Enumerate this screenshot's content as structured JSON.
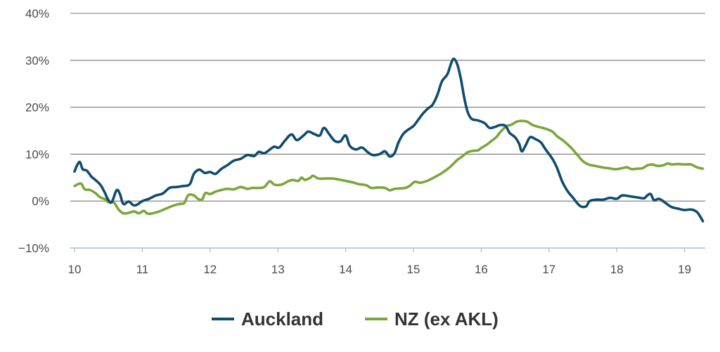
{
  "chart_data": {
    "type": "line",
    "title": "",
    "xlabel": "",
    "ylabel": "",
    "xlim": [
      10,
      19.3
    ],
    "ylim": [
      -10,
      40
    ],
    "x_ticks": [
      {
        "value": 10,
        "label": "10"
      },
      {
        "value": 11,
        "label": "11"
      },
      {
        "value": 12,
        "label": "12"
      },
      {
        "value": 13,
        "label": "13"
      },
      {
        "value": 14,
        "label": "14"
      },
      {
        "value": 15,
        "label": "15"
      },
      {
        "value": 16,
        "label": "16"
      },
      {
        "value": 17,
        "label": "17"
      },
      {
        "value": 18,
        "label": "18"
      },
      {
        "value": 19,
        "label": "19"
      }
    ],
    "y_ticks": [
      {
        "value": -10,
        "label": "−10%"
      },
      {
        "value": 0,
        "label": "0%"
      },
      {
        "value": 10,
        "label": "10%"
      },
      {
        "value": 20,
        "label": "20%"
      },
      {
        "value": 30,
        "label": "30%"
      },
      {
        "value": 40,
        "label": "40%"
      }
    ],
    "grid": true,
    "legend_position": "bottom-center",
    "series": [
      {
        "name": "Auckland",
        "color": "#0f4c6e",
        "points": [
          [
            10.0,
            6.3
          ],
          [
            10.04,
            7.7
          ],
          [
            10.08,
            8.3
          ],
          [
            10.12,
            6.8
          ],
          [
            10.18,
            6.5
          ],
          [
            10.25,
            5.2
          ],
          [
            10.3,
            4.6
          ],
          [
            10.38,
            3.5
          ],
          [
            10.44,
            2.0
          ],
          [
            10.5,
            0.2
          ],
          [
            10.55,
            -0.2
          ],
          [
            10.62,
            2.3
          ],
          [
            10.67,
            1.5
          ],
          [
            10.72,
            -0.6
          ],
          [
            10.8,
            -0.1
          ],
          [
            10.87,
            -0.9
          ],
          [
            10.93,
            -0.7
          ],
          [
            11.0,
            0.0
          ],
          [
            11.1,
            0.5
          ],
          [
            11.2,
            1.2
          ],
          [
            11.3,
            1.6
          ],
          [
            11.4,
            2.8
          ],
          [
            11.5,
            3.0
          ],
          [
            11.6,
            3.2
          ],
          [
            11.7,
            3.6
          ],
          [
            11.76,
            5.8
          ],
          [
            11.84,
            6.7
          ],
          [
            11.92,
            6.0
          ],
          [
            12.0,
            6.2
          ],
          [
            12.08,
            5.8
          ],
          [
            12.16,
            6.8
          ],
          [
            12.25,
            7.6
          ],
          [
            12.35,
            8.6
          ],
          [
            12.45,
            9.0
          ],
          [
            12.55,
            9.8
          ],
          [
            12.65,
            9.6
          ],
          [
            12.72,
            10.5
          ],
          [
            12.8,
            10.2
          ],
          [
            12.9,
            11.2
          ],
          [
            12.95,
            11.6
          ],
          [
            13.02,
            11.4
          ],
          [
            13.1,
            12.8
          ],
          [
            13.2,
            14.2
          ],
          [
            13.28,
            13.0
          ],
          [
            13.38,
            14.0
          ],
          [
            13.45,
            14.8
          ],
          [
            13.55,
            14.2
          ],
          [
            13.62,
            14.0
          ],
          [
            13.68,
            15.6
          ],
          [
            13.76,
            14.2
          ],
          [
            13.84,
            12.8
          ],
          [
            13.92,
            12.7
          ],
          [
            14.0,
            14.0
          ],
          [
            14.06,
            11.8
          ],
          [
            14.15,
            11.0
          ],
          [
            14.24,
            11.4
          ],
          [
            14.32,
            10.5
          ],
          [
            14.4,
            9.8
          ],
          [
            14.5,
            10.0
          ],
          [
            14.58,
            10.6
          ],
          [
            14.65,
            9.5
          ],
          [
            14.72,
            10.2
          ],
          [
            14.78,
            12.5
          ],
          [
            14.85,
            14.3
          ],
          [
            14.92,
            15.2
          ],
          [
            15.0,
            16.0
          ],
          [
            15.08,
            17.5
          ],
          [
            15.15,
            18.8
          ],
          [
            15.22,
            19.8
          ],
          [
            15.28,
            20.5
          ],
          [
            15.35,
            22.5
          ],
          [
            15.42,
            25.5
          ],
          [
            15.5,
            27.0
          ],
          [
            15.56,
            29.5
          ],
          [
            15.6,
            30.3
          ],
          [
            15.65,
            29.0
          ],
          [
            15.7,
            26.0
          ],
          [
            15.75,
            22.0
          ],
          [
            15.8,
            19.0
          ],
          [
            15.86,
            17.5
          ],
          [
            15.95,
            17.2
          ],
          [
            16.05,
            16.6
          ],
          [
            16.12,
            15.6
          ],
          [
            16.2,
            15.8
          ],
          [
            16.28,
            16.2
          ],
          [
            16.36,
            16.0
          ],
          [
            16.42,
            14.5
          ],
          [
            16.5,
            13.6
          ],
          [
            16.56,
            12.2
          ],
          [
            16.6,
            10.6
          ],
          [
            16.66,
            12.0
          ],
          [
            16.72,
            13.6
          ],
          [
            16.8,
            13.2
          ],
          [
            16.88,
            12.5
          ],
          [
            16.95,
            11.0
          ],
          [
            17.05,
            9.0
          ],
          [
            17.12,
            7.0
          ],
          [
            17.2,
            4.0
          ],
          [
            17.28,
            2.0
          ],
          [
            17.35,
            0.8
          ],
          [
            17.42,
            -0.5
          ],
          [
            17.48,
            -1.2
          ],
          [
            17.55,
            -1.1
          ],
          [
            17.6,
            0.0
          ],
          [
            17.7,
            0.3
          ],
          [
            17.8,
            0.3
          ],
          [
            17.9,
            0.7
          ],
          [
            18.0,
            0.5
          ],
          [
            18.08,
            1.2
          ],
          [
            18.2,
            1.0
          ],
          [
            18.3,
            0.8
          ],
          [
            18.4,
            0.6
          ],
          [
            18.45,
            1.2
          ],
          [
            18.5,
            1.5
          ],
          [
            18.55,
            0.2
          ],
          [
            18.62,
            0.5
          ],
          [
            18.7,
            -0.2
          ],
          [
            18.8,
            -1.2
          ],
          [
            18.9,
            -1.6
          ],
          [
            19.0,
            -1.9
          ],
          [
            19.1,
            -1.8
          ],
          [
            19.18,
            -2.3
          ],
          [
            19.24,
            -3.5
          ],
          [
            19.27,
            -4.3
          ]
        ]
      },
      {
        "name": "NZ (ex AKL)",
        "color": "#7aa63a",
        "points": [
          [
            10.0,
            3.2
          ],
          [
            10.05,
            3.6
          ],
          [
            10.1,
            3.7
          ],
          [
            10.15,
            2.5
          ],
          [
            10.22,
            2.4
          ],
          [
            10.3,
            1.8
          ],
          [
            10.38,
            0.8
          ],
          [
            10.45,
            0.4
          ],
          [
            10.5,
            -0.2
          ],
          [
            10.58,
            -0.3
          ],
          [
            10.65,
            -1.8
          ],
          [
            10.72,
            -2.6
          ],
          [
            10.8,
            -2.5
          ],
          [
            10.88,
            -2.2
          ],
          [
            10.95,
            -2.6
          ],
          [
            11.02,
            -2.1
          ],
          [
            11.08,
            -2.7
          ],
          [
            11.15,
            -2.6
          ],
          [
            11.25,
            -2.2
          ],
          [
            11.35,
            -1.6
          ],
          [
            11.45,
            -1.0
          ],
          [
            11.55,
            -0.6
          ],
          [
            11.62,
            -0.4
          ],
          [
            11.68,
            1.3
          ],
          [
            11.76,
            1.2
          ],
          [
            11.82,
            0.5
          ],
          [
            11.88,
            0.3
          ],
          [
            11.93,
            1.7
          ],
          [
            12.0,
            1.5
          ],
          [
            12.08,
            2.0
          ],
          [
            12.15,
            2.3
          ],
          [
            12.25,
            2.6
          ],
          [
            12.35,
            2.5
          ],
          [
            12.45,
            3.0
          ],
          [
            12.55,
            2.6
          ],
          [
            12.62,
            2.8
          ],
          [
            12.72,
            2.8
          ],
          [
            12.8,
            3.0
          ],
          [
            12.88,
            4.2
          ],
          [
            12.95,
            3.5
          ],
          [
            13.05,
            3.5
          ],
          [
            13.15,
            4.2
          ],
          [
            13.22,
            4.5
          ],
          [
            13.3,
            4.3
          ],
          [
            13.35,
            5.0
          ],
          [
            13.4,
            4.5
          ],
          [
            13.48,
            5.0
          ],
          [
            13.52,
            5.4
          ],
          [
            13.6,
            4.8
          ],
          [
            13.7,
            4.8
          ],
          [
            13.8,
            4.8
          ],
          [
            13.9,
            4.6
          ],
          [
            14.0,
            4.3
          ],
          [
            14.1,
            4.0
          ],
          [
            14.2,
            3.6
          ],
          [
            14.3,
            3.4
          ],
          [
            14.38,
            2.8
          ],
          [
            14.48,
            2.9
          ],
          [
            14.58,
            2.8
          ],
          [
            14.65,
            2.3
          ],
          [
            14.72,
            2.6
          ],
          [
            14.8,
            2.7
          ],
          [
            14.88,
            2.8
          ],
          [
            14.95,
            3.3
          ],
          [
            15.02,
            4.1
          ],
          [
            15.1,
            3.9
          ],
          [
            15.2,
            4.3
          ],
          [
            15.3,
            5.0
          ],
          [
            15.4,
            5.8
          ],
          [
            15.5,
            6.8
          ],
          [
            15.58,
            7.8
          ],
          [
            15.65,
            8.8
          ],
          [
            15.72,
            9.5
          ],
          [
            15.8,
            10.4
          ],
          [
            15.88,
            10.7
          ],
          [
            15.95,
            10.8
          ],
          [
            16.0,
            11.3
          ],
          [
            16.08,
            12.0
          ],
          [
            16.15,
            12.8
          ],
          [
            16.22,
            13.6
          ],
          [
            16.3,
            15.0
          ],
          [
            16.38,
            16.0
          ],
          [
            16.45,
            16.3
          ],
          [
            16.52,
            16.9
          ],
          [
            16.6,
            17.1
          ],
          [
            16.68,
            16.9
          ],
          [
            16.76,
            16.2
          ],
          [
            16.85,
            15.8
          ],
          [
            16.95,
            15.4
          ],
          [
            17.05,
            14.8
          ],
          [
            17.12,
            13.8
          ],
          [
            17.2,
            13.0
          ],
          [
            17.28,
            12.0
          ],
          [
            17.35,
            11.0
          ],
          [
            17.42,
            9.8
          ],
          [
            17.5,
            8.5
          ],
          [
            17.58,
            7.8
          ],
          [
            17.68,
            7.5
          ],
          [
            17.78,
            7.2
          ],
          [
            17.88,
            7.0
          ],
          [
            17.98,
            6.8
          ],
          [
            18.08,
            7.0
          ],
          [
            18.15,
            7.2
          ],
          [
            18.22,
            6.8
          ],
          [
            18.3,
            6.9
          ],
          [
            18.38,
            7.0
          ],
          [
            18.45,
            7.6
          ],
          [
            18.52,
            7.8
          ],
          [
            18.6,
            7.5
          ],
          [
            18.68,
            7.6
          ],
          [
            18.75,
            8.0
          ],
          [
            18.82,
            7.8
          ],
          [
            18.9,
            7.9
          ],
          [
            19.0,
            7.8
          ],
          [
            19.1,
            7.8
          ],
          [
            19.18,
            7.2
          ],
          [
            19.27,
            6.9
          ]
        ]
      }
    ]
  }
}
